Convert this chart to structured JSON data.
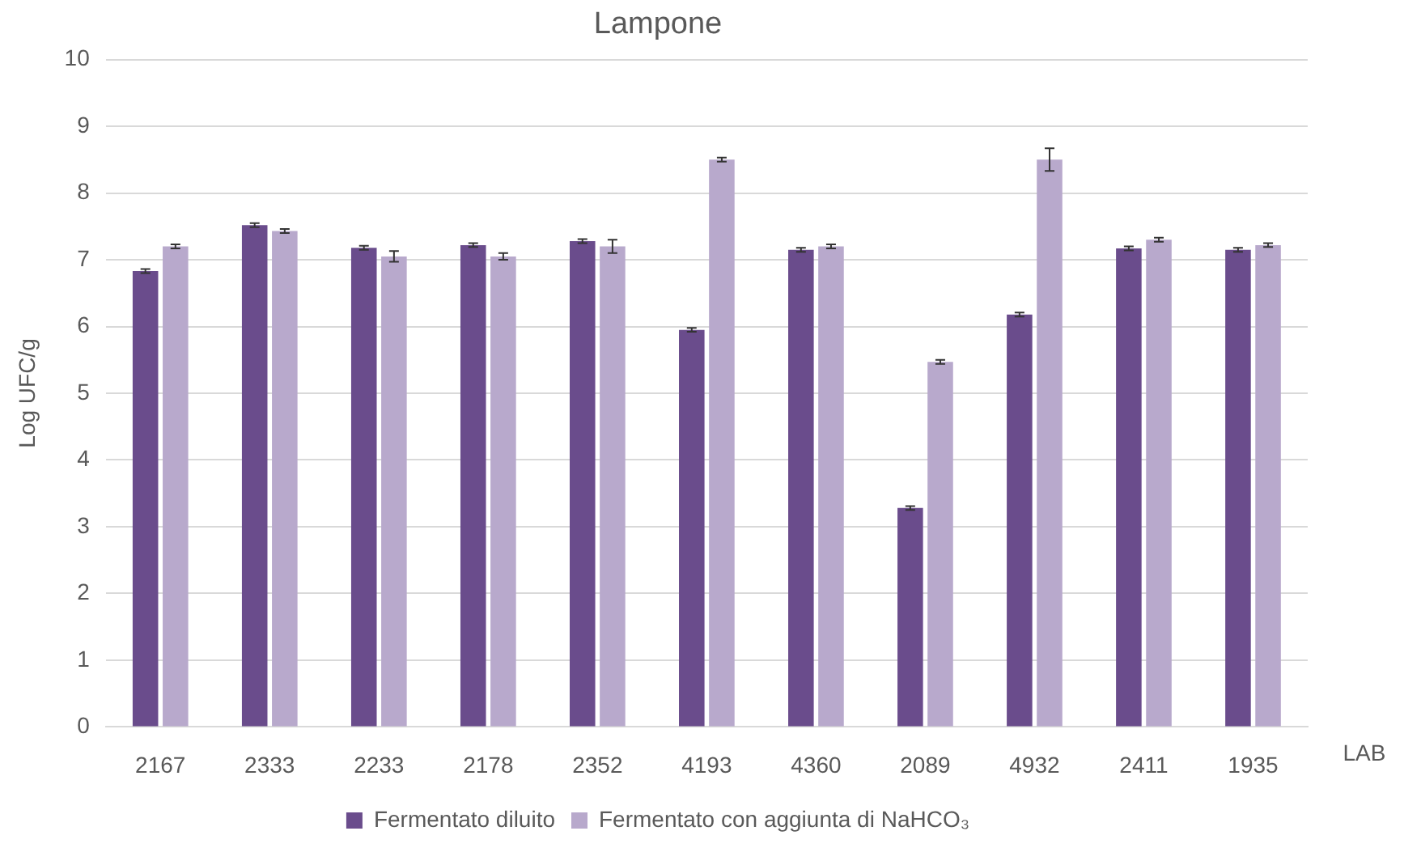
{
  "chart_data": {
    "type": "bar",
    "title": "Lampone",
    "ylabel": "Log UFC/g",
    "xlabel": "LAB",
    "categories": [
      "2167",
      "2333",
      "2233",
      "2178",
      "2352",
      "4193",
      "4360",
      "2089",
      "4932",
      "2411",
      "1935"
    ],
    "series": [
      {
        "name": "Fermentato diluito",
        "color": "#6a4c8c",
        "values": [
          6.83,
          7.52,
          7.18,
          7.22,
          7.28,
          5.95,
          7.15,
          3.28,
          6.18,
          7.17,
          7.15
        ],
        "errors": [
          0.03,
          0.03,
          0.03,
          0.03,
          0.03,
          0.03,
          0.03,
          0.03,
          0.03,
          0.03,
          0.03
        ]
      },
      {
        "name": "Fermentato con aggiunta di NaHCO₃",
        "color": "#b8a9cc",
        "values": [
          7.2,
          7.43,
          7.05,
          7.05,
          7.2,
          8.5,
          7.2,
          5.47,
          8.5,
          7.3,
          7.22
        ],
        "errors": [
          0.03,
          0.03,
          0.08,
          0.05,
          0.1,
          0.03,
          0.03,
          0.03,
          0.17,
          0.03,
          0.03
        ]
      }
    ],
    "ylim": [
      0,
      10
    ],
    "yticks": [
      0,
      1,
      2,
      3,
      4,
      5,
      6,
      7,
      8,
      9,
      10
    ],
    "grid": "y",
    "legend": "bottom"
  }
}
